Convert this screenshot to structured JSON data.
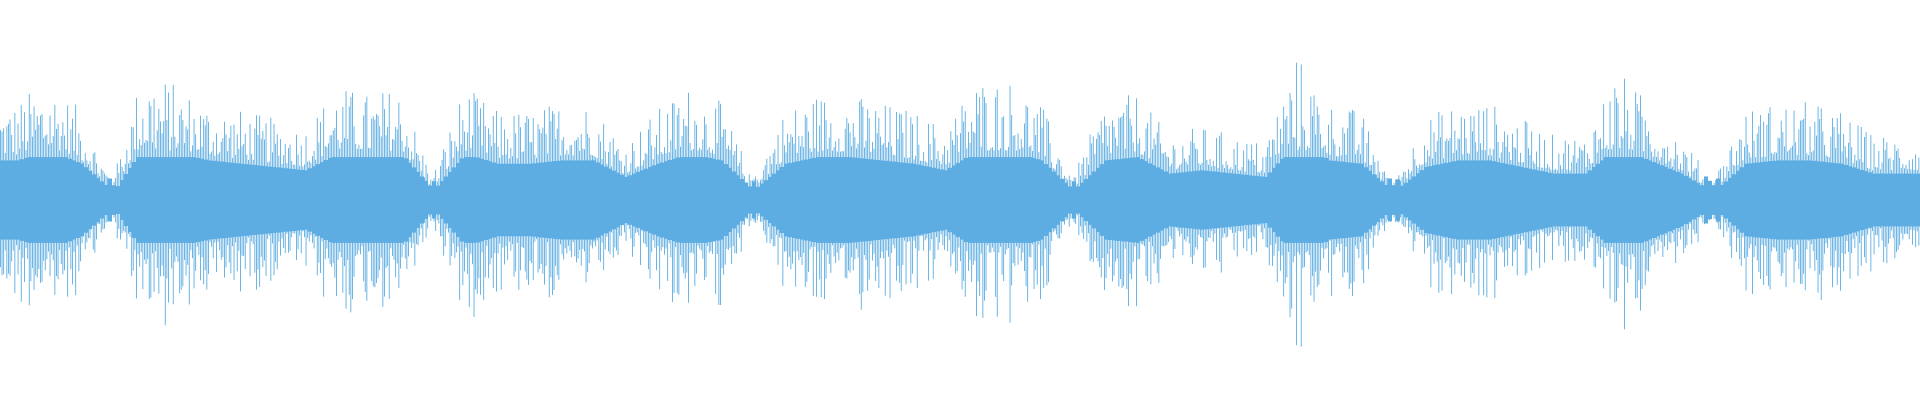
{
  "chart_data": {
    "type": "area",
    "subtype": "audio-waveform",
    "title": "",
    "xlabel": "",
    "ylabel": "",
    "ylim": [
      -1,
      1
    ],
    "axes_visible": false,
    "grid": false,
    "legend": "none",
    "color": "#5dade2",
    "background": "#ffffff",
    "peak_envelope_bins": 60,
    "peak_envelope": [
      0.6,
      0.75,
      0.55,
      0.12,
      0.85,
      0.7,
      0.6,
      0.55,
      0.5,
      0.45,
      0.7,
      0.65,
      0.7,
      0.15,
      0.7,
      0.55,
      0.55,
      0.6,
      0.6,
      0.35,
      0.55,
      0.7,
      0.6,
      0.15,
      0.55,
      0.65,
      0.65,
      0.6,
      0.55,
      0.45,
      0.75,
      0.75,
      0.6,
      0.15,
      0.6,
      0.65,
      0.4,
      0.45,
      0.4,
      0.35,
      0.9,
      0.6,
      0.55,
      0.12,
      0.5,
      0.6,
      0.6,
      0.5,
      0.4,
      0.4,
      0.8,
      0.6,
      0.4,
      0.12,
      0.55,
      0.6,
      0.6,
      0.55,
      0.4,
      0.4
    ]
  }
}
